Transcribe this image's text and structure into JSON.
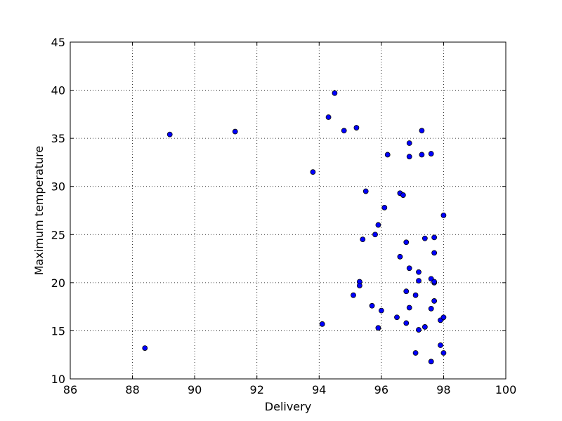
{
  "chart_data": {
    "type": "scatter",
    "title": "",
    "xlabel": "Delivery",
    "ylabel": "Maximum temperature",
    "xlim": [
      86,
      100
    ],
    "ylim": [
      10,
      45
    ],
    "xticks": [
      86,
      88,
      90,
      92,
      94,
      96,
      98,
      100
    ],
    "yticks": [
      10,
      15,
      20,
      25,
      30,
      35,
      40,
      45
    ],
    "grid": true,
    "marker_color": "#0000ff",
    "marker_edge_color": "#000000",
    "points": [
      [
        88.4,
        13.2
      ],
      [
        89.2,
        35.4
      ],
      [
        91.3,
        35.7
      ],
      [
        93.8,
        31.5
      ],
      [
        94.1,
        15.7
      ],
      [
        94.3,
        37.2
      ],
      [
        94.5,
        39.7
      ],
      [
        94.8,
        35.8
      ],
      [
        95.1,
        18.7
      ],
      [
        95.2,
        36.1
      ],
      [
        95.3,
        20.1
      ],
      [
        95.3,
        19.7
      ],
      [
        95.4,
        24.5
      ],
      [
        95.5,
        29.5
      ],
      [
        95.7,
        17.6
      ],
      [
        95.8,
        25.0
      ],
      [
        95.9,
        26.0
      ],
      [
        95.9,
        15.3
      ],
      [
        96.0,
        17.1
      ],
      [
        96.1,
        27.8
      ],
      [
        96.2,
        33.3
      ],
      [
        96.5,
        16.4
      ],
      [
        96.6,
        29.3
      ],
      [
        96.6,
        22.7
      ],
      [
        96.7,
        29.1
      ],
      [
        96.8,
        24.2
      ],
      [
        96.8,
        19.1
      ],
      [
        96.8,
        15.8
      ],
      [
        96.9,
        34.5
      ],
      [
        96.9,
        33.1
      ],
      [
        96.9,
        21.5
      ],
      [
        96.9,
        17.4
      ],
      [
        97.1,
        18.7
      ],
      [
        97.1,
        12.7
      ],
      [
        97.2,
        21.1
      ],
      [
        97.2,
        20.2
      ],
      [
        97.2,
        15.1
      ],
      [
        97.3,
        35.8
      ],
      [
        97.3,
        33.3
      ],
      [
        97.4,
        24.6
      ],
      [
        97.4,
        15.4
      ],
      [
        97.6,
        33.4
      ],
      [
        97.6,
        20.4
      ],
      [
        97.6,
        17.3
      ],
      [
        97.6,
        11.8
      ],
      [
        97.7,
        24.7
      ],
      [
        97.7,
        23.1
      ],
      [
        97.7,
        20.0
      ],
      [
        97.7,
        20.1
      ],
      [
        97.7,
        18.1
      ],
      [
        97.9,
        16.1
      ],
      [
        97.9,
        13.5
      ],
      [
        98.0,
        27.0
      ],
      [
        98.0,
        16.4
      ],
      [
        98.0,
        12.7
      ]
    ]
  }
}
